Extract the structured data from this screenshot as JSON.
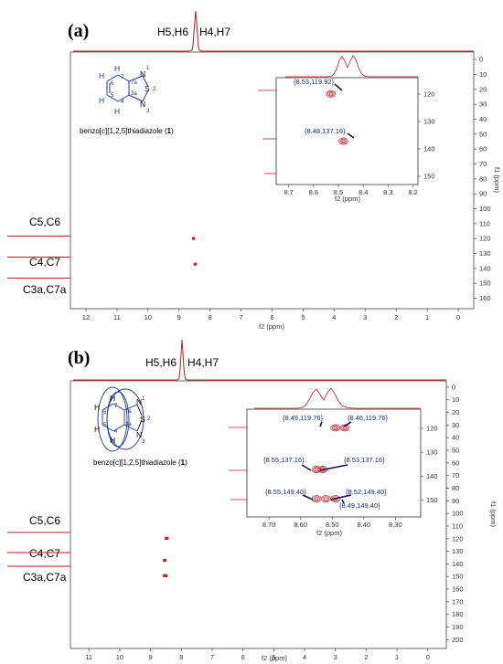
{
  "colors": {
    "spectrum": "#b81d24",
    "contour": "#c0262d",
    "annotation": "#1a2a8a",
    "arrow": "#12124a",
    "structure": "#1f3aa8",
    "frame": "#6a6a6a"
  },
  "chart_data": [
    {
      "type": "heatmap",
      "panel_label": "(a)",
      "xlabel": "f2 (ppm)",
      "ylabel": "f1 (ppm)",
      "xlim": [
        12.5,
        -0.5
      ],
      "ylim": [
        -5,
        167
      ],
      "x_ticks": [
        "12",
        "11",
        "10",
        "9",
        "8",
        "7",
        "6",
        "5",
        "4",
        "3",
        "2",
        "1",
        "0"
      ],
      "y_ticks": [
        "0",
        "10",
        "20",
        "30",
        "40",
        "50",
        "60",
        "70",
        "80",
        "90",
        "100",
        "110",
        "120",
        "130",
        "140",
        "150",
        "160"
      ],
      "h_proj_labels": [
        "H5,H6",
        "H4,H7"
      ],
      "c_proj_labels": [
        "C5,C6",
        "C4,C7",
        "C3a,C7a"
      ],
      "molecule_name": "benzo[c][1,2,5]thiadiazole (",
      "molecule_number": "1",
      "molecule_close": ")",
      "cross_peaks": [
        {
          "x": 8.53,
          "y": 119.92
        },
        {
          "x": 8.48,
          "y": 137.16
        }
      ],
      "inset": {
        "xlim": [
          8.75,
          8.18
        ],
        "ylim": [
          114,
          153
        ],
        "x_ticks": [
          "8.7",
          "8.6",
          "8.5",
          "8.4",
          "8.3",
          "8.2"
        ],
        "y_ticks": [
          "120",
          "130",
          "140",
          "150"
        ],
        "xlabel": "f2 (ppm)",
        "annotations": [
          "{8.53,119.92}",
          "{8.48,137.16}"
        ]
      }
    },
    {
      "type": "heatmap",
      "panel_label": "(b)",
      "xlabel": "f2 (ppm)",
      "ylabel": "f1 (ppm)",
      "xlim": [
        11.6,
        -0.6
      ],
      "ylim": [
        -5,
        207
      ],
      "x_ticks": [
        "11",
        "10",
        "9",
        "8",
        "7",
        "6",
        "5",
        "4",
        "3",
        "2",
        "1",
        "0"
      ],
      "y_ticks": [
        "0",
        "10",
        "20",
        "30",
        "40",
        "50",
        "60",
        "70",
        "80",
        "90",
        "100",
        "110",
        "120",
        "130",
        "140",
        "150",
        "160",
        "170",
        "180",
        "190",
        "200"
      ],
      "h_proj_labels": [
        "H5,H6",
        "H4,H7"
      ],
      "c_proj_labels": [
        "C5,C6",
        "C4,C7",
        "C3a,C7a"
      ],
      "molecule_name": "benzo[c][1,2,5]thiadiazole (",
      "molecule_number": "1",
      "molecule_close": ")",
      "cross_peaks": [
        {
          "x": 8.49,
          "y": 119.76
        },
        {
          "x": 8.46,
          "y": 119.76
        },
        {
          "x": 8.55,
          "y": 137.16
        },
        {
          "x": 8.53,
          "y": 137.16
        },
        {
          "x": 8.55,
          "y": 149.4
        },
        {
          "x": 8.52,
          "y": 149.4
        },
        {
          "x": 8.49,
          "y": 149.4
        }
      ],
      "inset": {
        "xlim": [
          8.77,
          8.22
        ],
        "ylim": [
          112,
          157
        ],
        "x_ticks": [
          "8.70",
          "8.60",
          "8.50",
          "8.40",
          "8.30"
        ],
        "y_ticks": [
          "120",
          "130",
          "140",
          "150"
        ],
        "xlabel": "f2 (ppm)",
        "annotations": [
          "{8.49,119.76}",
          "{8.46,119.76}",
          "{8.55,137.16}",
          "{8.53,137.16}",
          "{8.55,149.40}",
          "{8.52,149.40}",
          "{8.49,149.40}"
        ]
      }
    }
  ]
}
